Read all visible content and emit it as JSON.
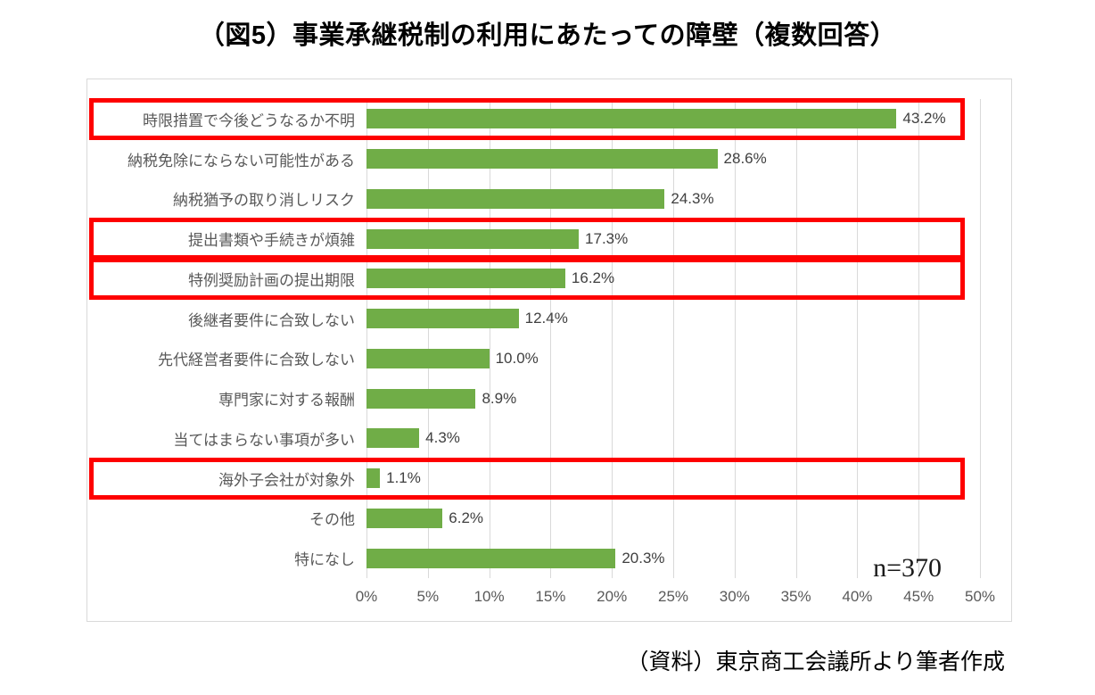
{
  "title": "（図5）事業承継税制の利用にあたっての障壁（複数回答）",
  "source": "（資料）東京商工会議所より筆者作成",
  "chart_data": {
    "type": "bar",
    "orientation": "horizontal",
    "title": "（図5）事業承継税制の利用にあたっての障壁（複数回答）",
    "categories": [
      "時限措置で今後どうなるか不明",
      "納税免除にならない可能性がある",
      "納税猶予の取り消しリスク",
      "提出書類や手続きが煩雑",
      "特例奨励計画の提出期限",
      "後継者要件に合致しない",
      "先代経営者要件に合致しない",
      "専門家に対する報酬",
      "当てはまらない事項が多い",
      "海外子会社が対象外",
      "その他",
      "特になし"
    ],
    "values": [
      43.2,
      28.6,
      24.3,
      17.3,
      16.2,
      12.4,
      10.0,
      8.9,
      4.3,
      1.1,
      6.2,
      20.3
    ],
    "value_labels": [
      "43.2%",
      "28.6%",
      "24.3%",
      "17.3%",
      "16.2%",
      "12.4%",
      "10.0%",
      "8.9%",
      "4.3%",
      "1.1%",
      "6.2%",
      "20.3%"
    ],
    "highlighted_indices": [
      0,
      3,
      4,
      9
    ],
    "x_ticks": [
      "0%",
      "5%",
      "10%",
      "15%",
      "20%",
      "25%",
      "30%",
      "35%",
      "40%",
      "45%",
      "50%"
    ],
    "xlim": [
      0,
      50
    ],
    "grid": true,
    "bar_color": "#70ad47",
    "highlight_color": "#fe0000",
    "n_label": "n=370",
    "legend": "none"
  }
}
